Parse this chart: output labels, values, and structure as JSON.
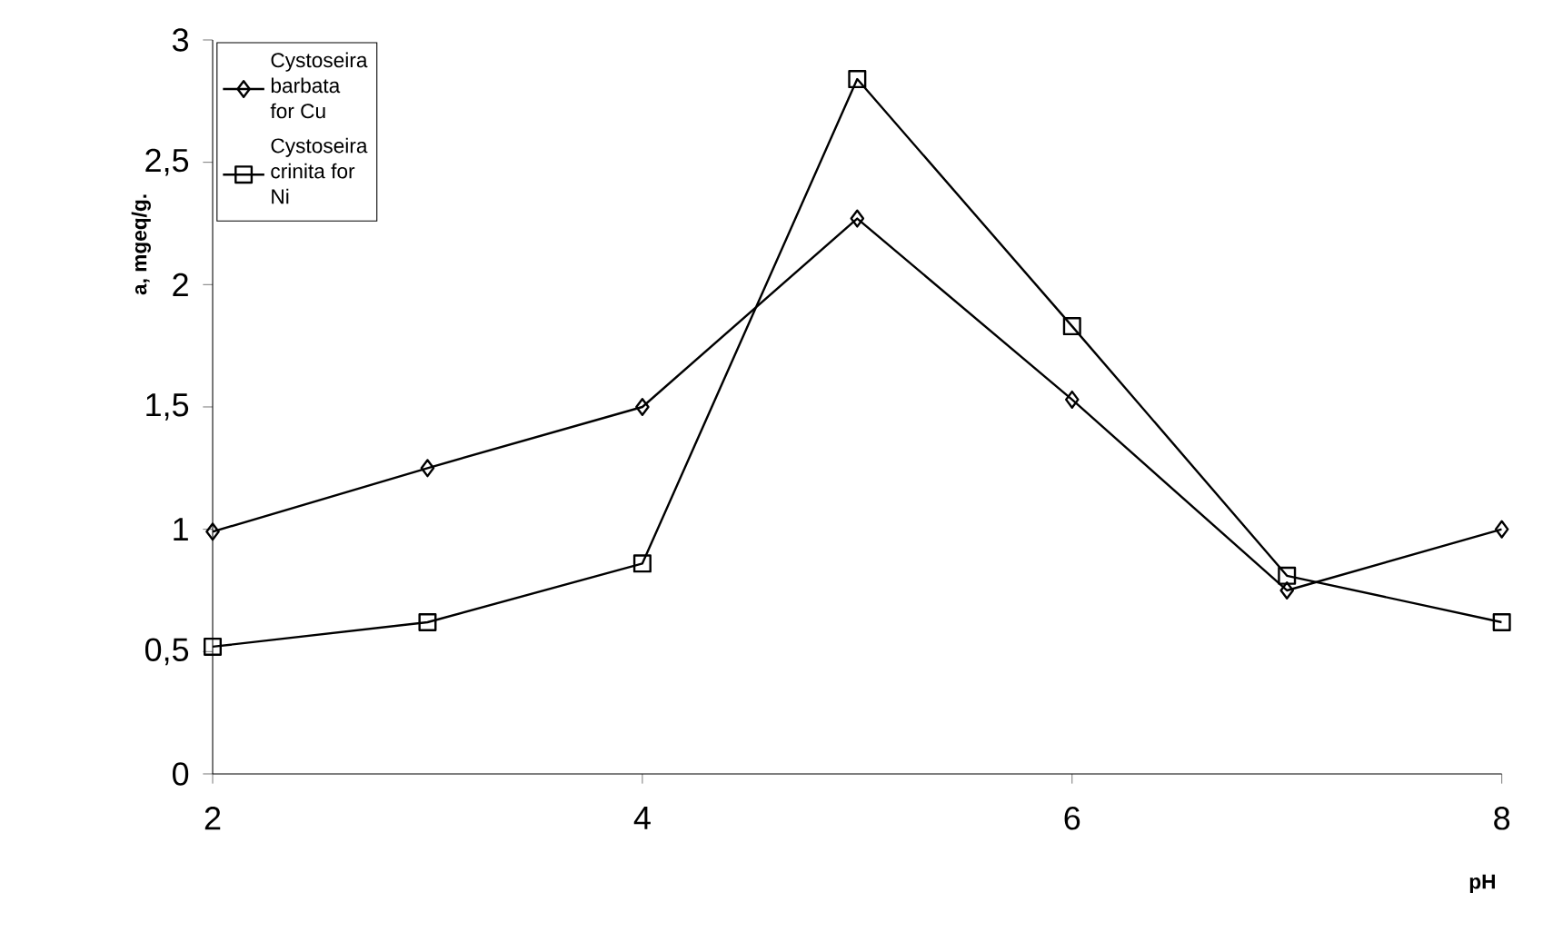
{
  "chart_data": {
    "type": "line",
    "xlabel": "pH",
    "ylabel": "a, mgeq/g.",
    "x": [
      2,
      3,
      4,
      5,
      6,
      7,
      8
    ],
    "series": [
      {
        "name": "Cystoseira barbata for Cu",
        "color": "#000000",
        "marker": "diamond",
        "values": [
          0.99,
          1.25,
          1.5,
          2.27,
          1.53,
          0.75,
          1.0
        ]
      },
      {
        "name": "Cystoseira crinita for Ni",
        "color": "#000000",
        "marker": "square",
        "values": [
          0.52,
          0.62,
          0.86,
          2.84,
          1.83,
          0.81,
          0.62
        ]
      }
    ],
    "xlim": [
      2,
      8
    ],
    "xticks": [
      2,
      4,
      6,
      8
    ],
    "ylim": [
      0,
      3
    ],
    "yticks": [
      0,
      {
        "value": 0.5,
        "label": "0,5"
      },
      1,
      {
        "value": 1.5,
        "label": "1,5"
      },
      2,
      {
        "value": 2.5,
        "label": "2,5"
      },
      3
    ],
    "grid": false,
    "legend": "top left",
    "line_style": "solid"
  }
}
